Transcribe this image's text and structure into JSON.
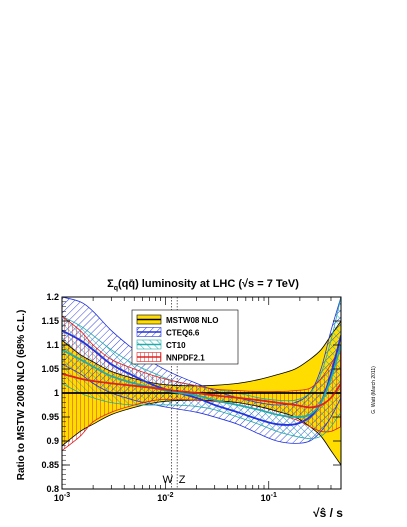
{
  "chart_data": {
    "type": "line",
    "title_prefix": "Σ",
    "title_sub": "q",
    "title_main": "(qq̄) luminosity at LHC (√s = 7 TeV)",
    "ylabel": "Ratio to MSTW 2008 NLO (68% C.L.)",
    "xlabel": "√ŝ / s",
    "x_scale": "log",
    "xlim": [
      0.001,
      0.5
    ],
    "ylim": [
      0.8,
      1.2
    ],
    "y_ticks": [
      "0.8",
      "0.85",
      "0.9",
      "0.95",
      "1",
      "1.05",
      "1.1",
      "1.15",
      "1.2"
    ],
    "x_tick_labels": [
      {
        "base": "10",
        "exp": "-3",
        "value": 0.001
      },
      {
        "base": "10",
        "exp": "-2",
        "value": 0.01
      },
      {
        "base": "10",
        "exp": "-1",
        "value": 0.1
      }
    ],
    "markers": [
      {
        "label": "W",
        "x": 0.0115
      },
      {
        "label": "Z",
        "x": 0.013
      }
    ],
    "legend": [
      "MSTW08 NLO",
      "CTEQ6.6",
      "CT10",
      "NNPDF2.1"
    ],
    "legend_placement": "top-center",
    "credit": "G. Watt   (March 2011)",
    "x": [
      0.001,
      0.0015,
      0.002,
      0.003,
      0.005,
      0.008,
      0.012,
      0.02,
      0.03,
      0.05,
      0.08,
      0.12,
      0.18,
      0.25,
      0.32,
      0.4,
      0.5
    ],
    "series": [
      {
        "name": "MSTW08 NLO",
        "color": "#ffdd00",
        "line": "#000000",
        "central": [
          1,
          1,
          1,
          1,
          1,
          1,
          1,
          1,
          1,
          1,
          1,
          1,
          1,
          1,
          1,
          1,
          1
        ],
        "upper": [
          1.11,
          1.08,
          1.065,
          1.045,
          1.03,
          1.02,
          1.016,
          1.015,
          1.016,
          1.02,
          1.028,
          1.038,
          1.05,
          1.07,
          1.09,
          1.12,
          1.15
        ],
        "lower": [
          0.89,
          0.92,
          0.935,
          0.955,
          0.97,
          0.98,
          0.984,
          0.985,
          0.984,
          0.98,
          0.972,
          0.962,
          0.95,
          0.93,
          0.91,
          0.88,
          0.85
        ]
      },
      {
        "name": "CTEQ6.6",
        "color": "#2233dd",
        "central": [
          1.13,
          1.11,
          1.09,
          1.06,
          1.035,
          1.015,
          1.003,
          0.99,
          0.975,
          0.96,
          0.945,
          0.935,
          0.935,
          0.95,
          0.98,
          1.04,
          1.12
        ],
        "upper": [
          1.2,
          1.19,
          1.17,
          1.13,
          1.09,
          1.06,
          1.04,
          1.02,
          1.005,
          0.99,
          0.98,
          0.975,
          0.98,
          1.0,
          1.05,
          1.13,
          1.2
        ],
        "lower": [
          1.06,
          1.04,
          1.02,
          1.0,
          0.985,
          0.975,
          0.968,
          0.96,
          0.95,
          0.935,
          0.915,
          0.9,
          0.895,
          0.9,
          0.92,
          0.95,
          0.99
        ]
      },
      {
        "name": "CT10",
        "color": "#22aaaa",
        "central": [
          1.09,
          1.07,
          1.055,
          1.035,
          1.02,
          1.01,
          1.002,
          0.995,
          0.985,
          0.975,
          0.965,
          0.955,
          0.95,
          0.955,
          0.98,
          1.03,
          1.1
        ],
        "upper": [
          1.16,
          1.14,
          1.12,
          1.09,
          1.06,
          1.04,
          1.025,
          1.015,
          1.008,
          1.0,
          0.99,
          0.985,
          0.985,
          1.0,
          1.04,
          1.11,
          1.2
        ],
        "lower": [
          1.02,
          1.0,
          0.99,
          0.98,
          0.975,
          0.975,
          0.975,
          0.972,
          0.965,
          0.95,
          0.935,
          0.92,
          0.91,
          0.905,
          0.91,
          0.93,
          0.96
        ]
      },
      {
        "name": "NNPDF2.1",
        "color": "#dd2222",
        "central": [
          1.04,
          1.03,
          1.025,
          1.02,
          1.015,
          1.01,
          1.005,
          1.0,
          0.995,
          0.99,
          0.985,
          0.98,
          0.975,
          0.97,
          0.975,
          0.99,
          1.02
        ],
        "upper": [
          1.16,
          1.13,
          1.1,
          1.07,
          1.05,
          1.035,
          1.025,
          1.015,
          1.008,
          1.005,
          1.003,
          1.003,
          1.005,
          1.01,
          1.03,
          1.06,
          1.1
        ],
        "lower": [
          0.88,
          0.91,
          0.94,
          0.96,
          0.975,
          0.985,
          0.987,
          0.985,
          0.982,
          0.975,
          0.965,
          0.955,
          0.945,
          0.93,
          0.92,
          0.92,
          0.93
        ]
      }
    ]
  }
}
